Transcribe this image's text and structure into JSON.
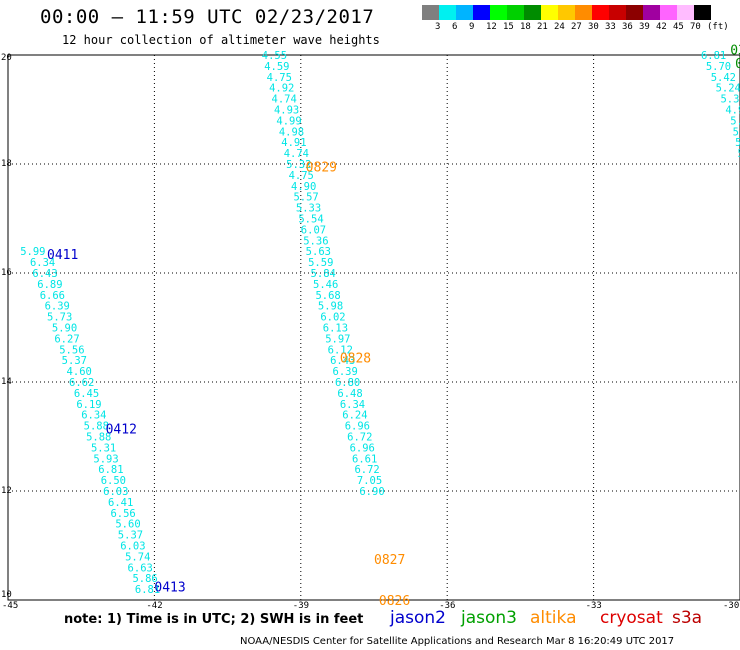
{
  "header": {
    "title": "00:00 – 11:59 UTC 02/23/2017",
    "subtitle": "12 hour collection of altimeter wave heights"
  },
  "legend": {
    "colors": [
      "#7f7f7f",
      "#00f0f0",
      "#00b4ff",
      "#0000ff",
      "#00ff00",
      "#00d000",
      "#008c00",
      "#ffff00",
      "#ffc800",
      "#ff8c00",
      "#ff0000",
      "#c80000",
      "#8c0000",
      "#a000a0",
      "#ff64ff",
      "#ffbcff",
      "#000000"
    ],
    "labels": [
      "3",
      "6",
      "9",
      "12",
      "15",
      "18",
      "21",
      "24",
      "27",
      "30",
      "33",
      "36",
      "39",
      "42",
      "45",
      "70"
    ],
    "unit": "(ft)"
  },
  "axes": {
    "lon_ticks": [
      "-45",
      "-42",
      "-39",
      "-36",
      "-33",
      "-30"
    ],
    "lat_ticks": [
      "20",
      "18",
      "16",
      "14",
      "12",
      "10"
    ]
  },
  "map": {
    "label_color": "#00e5e5",
    "tracks": [
      {
        "name": "track-left",
        "readings": [
          "5.99",
          "6.34",
          "6.43",
          "6.89",
          "6.66",
          "6.39",
          "5.73",
          "5.90",
          "6.27",
          "5.56",
          "5.37",
          "4.60",
          "6.62",
          "6.45",
          "6.19",
          "6.34",
          "5.88",
          "5.88",
          "5.31",
          "5.93",
          "6.81",
          "6.50",
          "6.03",
          "6.41",
          "6.56",
          "5.60",
          "5.37",
          "6.03",
          "5.74",
          "6.63",
          "5.86",
          "6.81"
        ],
        "points": [
          [
            -44.75,
            16.4
          ],
          [
            -44.55,
            16.2
          ],
          [
            -44.5,
            16.0
          ],
          [
            -44.4,
            15.8
          ],
          [
            -44.35,
            15.6
          ],
          [
            -44.25,
            15.4
          ],
          [
            -44.2,
            15.2
          ],
          [
            -44.1,
            15.0
          ],
          [
            -44.05,
            14.8
          ],
          [
            -43.95,
            14.6
          ],
          [
            -43.9,
            14.4
          ],
          [
            -43.8,
            14.2
          ],
          [
            -43.75,
            14.0
          ],
          [
            -43.65,
            13.8
          ],
          [
            -43.6,
            13.6
          ],
          [
            -43.5,
            13.4
          ],
          [
            -43.45,
            13.2
          ],
          [
            -43.4,
            13.0
          ],
          [
            -43.3,
            12.8
          ],
          [
            -43.25,
            12.6
          ],
          [
            -43.15,
            12.4
          ],
          [
            -43.1,
            12.2
          ],
          [
            -43.05,
            12.0
          ],
          [
            -42.95,
            11.8
          ],
          [
            -42.9,
            11.6
          ],
          [
            -42.8,
            11.4
          ],
          [
            -42.75,
            11.2
          ],
          [
            -42.7,
            11.0
          ],
          [
            -42.6,
            10.8
          ],
          [
            -42.55,
            10.6
          ],
          [
            -42.45,
            10.4
          ],
          [
            -42.4,
            10.2
          ]
        ]
      },
      {
        "name": "track-middle",
        "readings": [
          "4.55",
          "4.59",
          "4.75",
          "4.92",
          "4.74",
          "4.93",
          "4.99",
          "4.98",
          "4.91",
          "4.74",
          "5.32",
          "4.75",
          "4.90",
          "5.57",
          "5.33",
          "5.54",
          "6.07",
          "5.36",
          "5.63",
          "5.59",
          "5.84",
          "5.46",
          "5.68",
          "5.98",
          "6.02",
          "6.13",
          "5.97",
          "6.12",
          "6.43",
          "6.39",
          "6.80",
          "6.48",
          "6.34",
          "6.24",
          "6.96",
          "6.72",
          "6.96",
          "6.61",
          "6.72",
          "7.05",
          "6.90"
        ],
        "points": [
          [
            -39.8,
            20.0
          ],
          [
            -39.75,
            19.8
          ],
          [
            -39.7,
            19.6
          ],
          [
            -39.65,
            19.4
          ],
          [
            -39.6,
            19.2
          ],
          [
            -39.55,
            19.0
          ],
          [
            -39.5,
            18.8
          ],
          [
            -39.45,
            18.6
          ],
          [
            -39.4,
            18.4
          ],
          [
            -39.35,
            18.2
          ],
          [
            -39.3,
            18.0
          ],
          [
            -39.25,
            17.8
          ],
          [
            -39.2,
            17.6
          ],
          [
            -39.15,
            17.4
          ],
          [
            -39.1,
            17.2
          ],
          [
            -39.05,
            17.0
          ],
          [
            -39.0,
            16.8
          ],
          [
            -38.95,
            16.6
          ],
          [
            -38.9,
            16.4
          ],
          [
            -38.85,
            16.2
          ],
          [
            -38.8,
            16.0
          ],
          [
            -38.75,
            15.8
          ],
          [
            -38.7,
            15.6
          ],
          [
            -38.65,
            15.4
          ],
          [
            -38.6,
            15.2
          ],
          [
            -38.55,
            15.0
          ],
          [
            -38.5,
            14.8
          ],
          [
            -38.45,
            14.6
          ],
          [
            -38.4,
            14.4
          ],
          [
            -38.35,
            14.2
          ],
          [
            -38.3,
            14.0
          ],
          [
            -38.25,
            13.8
          ],
          [
            -38.2,
            13.6
          ],
          [
            -38.15,
            13.4
          ],
          [
            -38.1,
            13.2
          ],
          [
            -38.05,
            13.0
          ],
          [
            -38.0,
            12.8
          ],
          [
            -37.95,
            12.6
          ],
          [
            -37.9,
            12.4
          ],
          [
            -37.85,
            12.2
          ],
          [
            -37.8,
            12.0
          ]
        ]
      },
      {
        "name": "track-right",
        "readings": [
          "6.81",
          "5.70",
          "5.42",
          "5.24",
          "5.32",
          "4.99",
          "5.03",
          "5.3",
          "5.6",
          "5.",
          "5."
        ],
        "points": [
          [
            -30.8,
            20.0
          ],
          [
            -30.7,
            19.8
          ],
          [
            -30.6,
            19.6
          ],
          [
            -30.5,
            19.4
          ],
          [
            -30.4,
            19.2
          ],
          [
            -30.3,
            19.0
          ],
          [
            -30.2,
            18.8
          ],
          [
            -30.15,
            18.6
          ],
          [
            -30.1,
            18.4
          ],
          [
            -30.05,
            18.2
          ],
          [
            -30.0,
            18.0
          ]
        ]
      }
    ],
    "pass_labels": [
      {
        "text": "0411",
        "color": "#0000cc",
        "lon": -44.2,
        "lat": 16.35
      },
      {
        "text": "0412",
        "color": "#0000cc",
        "lon": -43.0,
        "lat": 13.15
      },
      {
        "text": "0413",
        "color": "#0000cc",
        "lon": -42.0,
        "lat": 10.25
      },
      {
        "text": "0829",
        "color": "#ff8c00",
        "lon": -38.9,
        "lat": 17.95
      },
      {
        "text": "0828",
        "color": "#ff8c00",
        "lon": -38.2,
        "lat": 14.45
      },
      {
        "text": "0827",
        "color": "#ff8c00",
        "lon": -37.5,
        "lat": 10.75
      },
      {
        "text": "0826",
        "color": "#ff8c00",
        "lon": -37.4,
        "lat": 10.0
      },
      {
        "text": "03",
        "color": "#008c00",
        "lon": -30.2,
        "lat": 20.1
      },
      {
        "text": "0",
        "color": "#008c00",
        "lon": -30.1,
        "lat": 19.85
      }
    ]
  },
  "footer": {
    "note": "note: 1) Time is in UTC; 2) SWH is in feet",
    "satellites": [
      {
        "name": "jason2",
        "color": "#0000cc"
      },
      {
        "name": "jason3",
        "color": "#00a000"
      },
      {
        "name": "altika",
        "color": "#ff8c00"
      },
      {
        "name": "cryosat",
        "color": "#dd0000"
      },
      {
        "name": "s3a",
        "color": "#bb0000"
      }
    ],
    "credit": "NOAA/NESDIS Center for Satellite Applications and Research   Mar  8 16:20:49 UTC 2017"
  }
}
